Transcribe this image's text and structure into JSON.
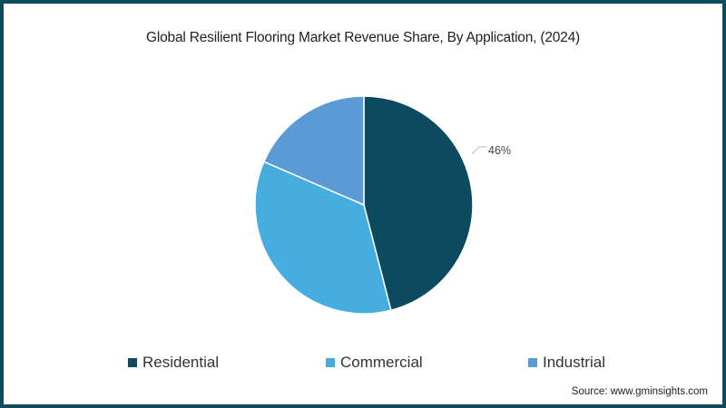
{
  "chart_data": {
    "type": "pie",
    "title": "Global Resilient Flooring Market Revenue Share, By Application, (2024)",
    "categories": [
      "Residential",
      "Commercial",
      "Industrial"
    ],
    "values": [
      46,
      35.5,
      18.5
    ],
    "colors": [
      "#0b4a5f",
      "#45ade0",
      "#5b9bd5"
    ],
    "data_labels": [
      {
        "category": "Residential",
        "text": "46%"
      }
    ],
    "start_angle": "12 o'clock, clockwise",
    "legend_position": "bottom"
  },
  "title": "Global Resilient Flooring Market Revenue Share, By Application, (2024)",
  "legend": [
    {
      "label": "Residential",
      "color": "#0b4a5f"
    },
    {
      "label": "Commercial",
      "color": "#45ade0"
    },
    {
      "label": "Industrial",
      "color": "#5b9bd5"
    }
  ],
  "label_46": "46%",
  "source": "Source: www.gminsights.com",
  "colors": {
    "border": "#0f4a5e",
    "background": "#ffffff"
  }
}
